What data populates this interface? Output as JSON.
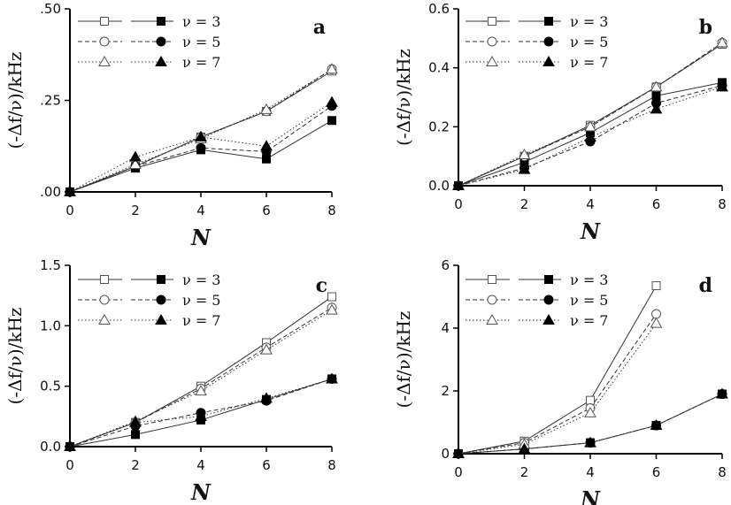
{
  "chart_data": [
    {
      "type": "line",
      "panel_label": "a",
      "xlabel": "N",
      "ylabel": "(-Δf/ν)/kHz",
      "xlim": [
        0,
        8
      ],
      "ylim": [
        0,
        0.5
      ],
      "xticks": [
        0,
        2,
        4,
        6,
        8
      ],
      "yticks": [
        0,
        0.25,
        0.5
      ],
      "yticklabels": [
        ".00",
        ".25",
        ".50"
      ],
      "x": [
        0,
        2,
        4,
        6,
        8
      ],
      "series": [
        {
          "name": "ν=3",
          "marker": "square",
          "filled": false,
          "dash": "solid",
          "values": [
            0.0,
            0.07,
            0.15,
            0.22,
            0.33
          ]
        },
        {
          "name": "ν=3",
          "marker": "square",
          "filled": true,
          "dash": "solid",
          "values": [
            0.0,
            0.065,
            0.115,
            0.09,
            0.195
          ]
        },
        {
          "name": "ν=5",
          "marker": "circle",
          "filled": false,
          "dash": "dashed",
          "values": [
            0.0,
            0.07,
            0.15,
            0.22,
            0.335
          ]
        },
        {
          "name": "ν=5",
          "marker": "circle",
          "filled": true,
          "dash": "dashed",
          "values": [
            0.0,
            0.07,
            0.12,
            0.11,
            0.235
          ]
        },
        {
          "name": "ν=7",
          "marker": "triangle",
          "filled": false,
          "dash": "dotted",
          "values": [
            0.0,
            0.075,
            0.145,
            0.225,
            0.335
          ]
        },
        {
          "name": "ν=7",
          "marker": "triangle",
          "filled": true,
          "dash": "dotted",
          "values": [
            0.0,
            0.095,
            0.15,
            0.125,
            0.245
          ]
        }
      ]
    },
    {
      "type": "line",
      "panel_label": "b",
      "xlabel": "N",
      "ylabel": "(-Δf/ν)/kHz",
      "xlim": [
        0,
        8
      ],
      "ylim": [
        0,
        0.6
      ],
      "xticks": [
        0,
        2,
        4,
        6,
        8
      ],
      "yticks": [
        0,
        0.2,
        0.4,
        0.6
      ],
      "yticklabels": [
        "0.0",
        "0.2",
        "0.4",
        "0.6"
      ],
      "x": [
        0,
        2,
        4,
        6,
        8
      ],
      "series": [
        {
          "name": "ν=3",
          "marker": "square",
          "filled": false,
          "dash": "solid",
          "values": [
            0.0,
            0.1,
            0.205,
            0.335,
            0.48
          ]
        },
        {
          "name": "ν=3",
          "marker": "square",
          "filled": true,
          "dash": "solid",
          "values": [
            0.0,
            0.08,
            0.18,
            0.305,
            0.35
          ]
        },
        {
          "name": "ν=5",
          "marker": "circle",
          "filled": false,
          "dash": "dashed",
          "values": [
            0.0,
            0.1,
            0.2,
            0.335,
            0.485
          ]
        },
        {
          "name": "ν=5",
          "marker": "circle",
          "filled": true,
          "dash": "dashed",
          "values": [
            0.0,
            0.06,
            0.15,
            0.28,
            0.34
          ]
        },
        {
          "name": "ν=7",
          "marker": "triangle",
          "filled": false,
          "dash": "dotted",
          "values": [
            0.0,
            0.105,
            0.2,
            0.335,
            0.485
          ]
        },
        {
          "name": "ν=7",
          "marker": "triangle",
          "filled": true,
          "dash": "dotted",
          "values": [
            0.0,
            0.055,
            0.165,
            0.26,
            0.335
          ]
        }
      ]
    },
    {
      "type": "line",
      "panel_label": "c",
      "xlabel": "N",
      "ylabel": "(-Δf/ν)/kHz",
      "xlim": [
        0,
        8
      ],
      "ylim": [
        0,
        1.5
      ],
      "xticks": [
        0,
        2,
        4,
        6,
        8
      ],
      "yticks": [
        0,
        0.5,
        1.0,
        1.5
      ],
      "yticklabels": [
        "0.0",
        "0.5",
        "1.0",
        "1.5"
      ],
      "x": [
        0,
        2,
        4,
        6,
        8
      ],
      "series": [
        {
          "name": "ν=3",
          "marker": "square",
          "filled": false,
          "dash": "solid",
          "values": [
            0.0,
            0.2,
            0.5,
            0.86,
            1.24
          ]
        },
        {
          "name": "ν=3",
          "marker": "square",
          "filled": true,
          "dash": "solid",
          "values": [
            0.0,
            0.1,
            0.22,
            0.39,
            0.56
          ]
        },
        {
          "name": "ν=5",
          "marker": "circle",
          "filled": false,
          "dash": "dashed",
          "values": [
            0.0,
            0.2,
            0.48,
            0.82,
            1.15
          ]
        },
        {
          "name": "ν=5",
          "marker": "circle",
          "filled": true,
          "dash": "dashed",
          "values": [
            0.0,
            0.17,
            0.28,
            0.38,
            0.56
          ]
        },
        {
          "name": "ν=7",
          "marker": "triangle",
          "filled": false,
          "dash": "dotted",
          "values": [
            0.0,
            0.21,
            0.46,
            0.8,
            1.13
          ]
        },
        {
          "name": "ν=7",
          "marker": "triangle",
          "filled": true,
          "dash": "dotted",
          "values": [
            0.0,
            0.2,
            0.25,
            0.4,
            0.56
          ]
        }
      ]
    },
    {
      "type": "line",
      "panel_label": "d",
      "xlabel": "N",
      "ylabel": "(-Δf/ν)/kHz",
      "xlim": [
        0,
        8
      ],
      "ylim": [
        0,
        6
      ],
      "xticks": [
        0,
        2,
        4,
        6,
        8
      ],
      "yticks": [
        0,
        2,
        4,
        6
      ],
      "yticklabels": [
        "0",
        "2",
        "4",
        "6"
      ],
      "x": [
        0,
        2,
        4,
        6,
        8
      ],
      "series": [
        {
          "name": "ν=3",
          "marker": "square",
          "filled": false,
          "dash": "solid",
          "values": [
            0.0,
            0.4,
            1.7,
            5.35,
            null
          ]
        },
        {
          "name": "ν=3",
          "marker": "square",
          "filled": true,
          "dash": "solid",
          "values": [
            0.0,
            0.15,
            0.35,
            0.9,
            1.9
          ]
        },
        {
          "name": "ν=5",
          "marker": "circle",
          "filled": false,
          "dash": "dashed",
          "values": [
            0.0,
            0.35,
            1.45,
            4.45,
            null
          ]
        },
        {
          "name": "ν=5",
          "marker": "circle",
          "filled": true,
          "dash": "dashed",
          "values": [
            0.0,
            0.15,
            0.35,
            0.9,
            1.9
          ]
        },
        {
          "name": "ν=7",
          "marker": "triangle",
          "filled": false,
          "dash": "dotted",
          "values": [
            0.0,
            0.3,
            1.3,
            4.15,
            null
          ]
        },
        {
          "name": "ν=7",
          "marker": "triangle",
          "filled": true,
          "dash": "dotted",
          "values": [
            0.0,
            0.15,
            0.35,
            0.9,
            1.9
          ]
        }
      ]
    }
  ],
  "legend": {
    "placement": "top-left",
    "entries": [
      "ν = 3",
      "ν = 5",
      "ν = 7"
    ]
  }
}
